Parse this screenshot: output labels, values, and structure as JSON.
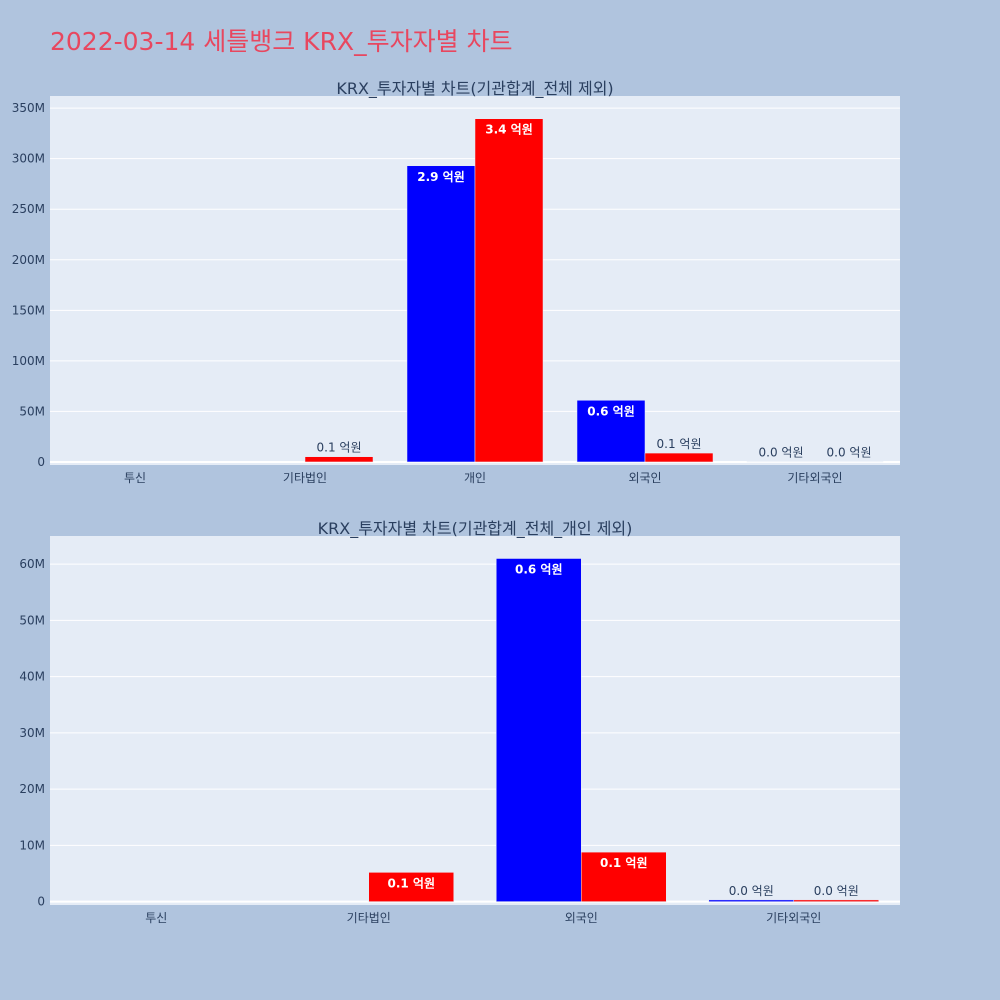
{
  "page": {
    "title": "2022-03-14 세틀뱅크 KRX_투자자별 차트"
  },
  "colors": {
    "series_a": "#0000ff",
    "series_b": "#ff0000",
    "title": "#e8475f",
    "background": "#b0c4de",
    "plot_bg": "#e5ecf6"
  },
  "chart_data": [
    {
      "type": "bar",
      "title": "KRX_투자자별 차트(기관합계_전체 제외)",
      "xlabel": "",
      "ylabel": "",
      "categories": [
        "투신",
        "기타법인",
        "개인",
        "외국인",
        "기타외국인"
      ],
      "series": [
        {
          "color": "#0000ff",
          "values": [
            0,
            0,
            293000000,
            61000000,
            300000
          ],
          "labels": [
            "",
            "",
            "2.9 억원",
            "0.6 억원",
            "0.0 억원"
          ]
        },
        {
          "color": "#ff0000",
          "values": [
            0,
            5200000,
            339500000,
            8800000,
            300000
          ],
          "labels": [
            "",
            "0.1 억원",
            "3.4 억원",
            "0.1 억원",
            "0.0 억원"
          ]
        }
      ],
      "ylim": [
        -3000000,
        362000000
      ],
      "yticks": [
        0,
        50000000,
        100000000,
        150000000,
        200000000,
        250000000,
        300000000,
        350000000
      ],
      "ytick_labels": [
        "0",
        "50M",
        "100M",
        "150M",
        "200M",
        "250M",
        "300M",
        "350M"
      ],
      "grid": true,
      "legend": "none"
    },
    {
      "type": "bar",
      "title": "KRX_투자자별 차트(기관합계_전체_개인 제외)",
      "xlabel": "",
      "ylabel": "",
      "categories": [
        "투신",
        "기타법인",
        "외국인",
        "기타외국인"
      ],
      "series": [
        {
          "color": "#0000ff",
          "values": [
            0,
            0,
            61000000,
            300000
          ],
          "labels": [
            "",
            "",
            "0.6 억원",
            "0.0 억원"
          ]
        },
        {
          "color": "#ff0000",
          "values": [
            0,
            5200000,
            8800000,
            300000
          ],
          "labels": [
            "",
            "0.1 억원",
            "0.1 억원",
            "0.0 억원"
          ]
        }
      ],
      "ylim": [
        -600000,
        65000000
      ],
      "yticks": [
        0,
        10000000,
        20000000,
        30000000,
        40000000,
        50000000,
        60000000
      ],
      "ytick_labels": [
        "0",
        "10M",
        "20M",
        "30M",
        "40M",
        "50M",
        "60M"
      ],
      "grid": true,
      "legend": "none"
    }
  ]
}
